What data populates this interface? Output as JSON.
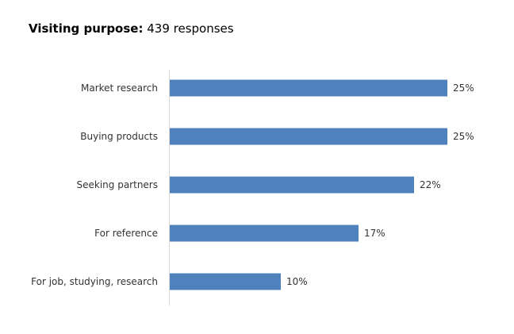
{
  "header": {
    "title_bold": "Visiting purpose:",
    "title_rest": "439 responses"
  },
  "chart_data": {
    "type": "bar",
    "orientation": "horizontal",
    "title": "Visiting purpose: 439 responses",
    "categories": [
      "Market research",
      "Buying products",
      "Seeking partners",
      "For reference",
      "For job, studying, research"
    ],
    "values": [
      25,
      25,
      22,
      17,
      10
    ],
    "value_labels": [
      "25%",
      "25%",
      "22%",
      "17%",
      "10%"
    ],
    "unit": "%",
    "xlim": [
      0,
      25
    ],
    "grid": false,
    "legend": "none",
    "bar_color": "#4F81BD",
    "axis_color": "#D9D9D9"
  }
}
